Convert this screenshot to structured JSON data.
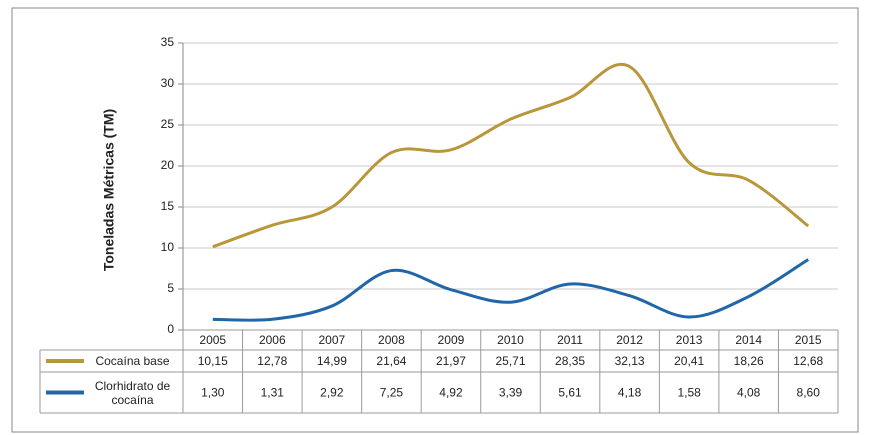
{
  "chart_data": {
    "type": "line",
    "y_label": "Toneladas Métricas (TM)",
    "categories": [
      "2005",
      "2006",
      "2007",
      "2008",
      "2009",
      "2010",
      "2011",
      "2012",
      "2013",
      "2014",
      "2015"
    ],
    "series": [
      {
        "name": "Cocaína base",
        "color": "#b8973a",
        "values": [
          10.15,
          12.78,
          14.99,
          21.64,
          21.97,
          25.71,
          28.35,
          32.13,
          20.41,
          18.26,
          12.68
        ],
        "value_labels": [
          "10,15",
          "12,78",
          "14,99",
          "21,64",
          "21,97",
          "25,71",
          "28,35",
          "32,13",
          "20,41",
          "18,26",
          "12,68"
        ]
      },
      {
        "name": "Clorhidrato de cocaína",
        "color": "#2066a8",
        "values": [
          1.3,
          1.31,
          2.92,
          7.25,
          4.92,
          3.39,
          5.61,
          4.18,
          1.58,
          4.08,
          8.6
        ],
        "value_labels": [
          "1,30",
          "1,31",
          "2,92",
          "7,25",
          "4,92",
          "3,39",
          "5,61",
          "4,18",
          "1,58",
          "4,08",
          "8,60"
        ]
      }
    ],
    "ylim": [
      0,
      35
    ],
    "yticks": [
      0,
      5,
      10,
      15,
      20,
      25,
      30,
      35
    ],
    "grid": true
  }
}
